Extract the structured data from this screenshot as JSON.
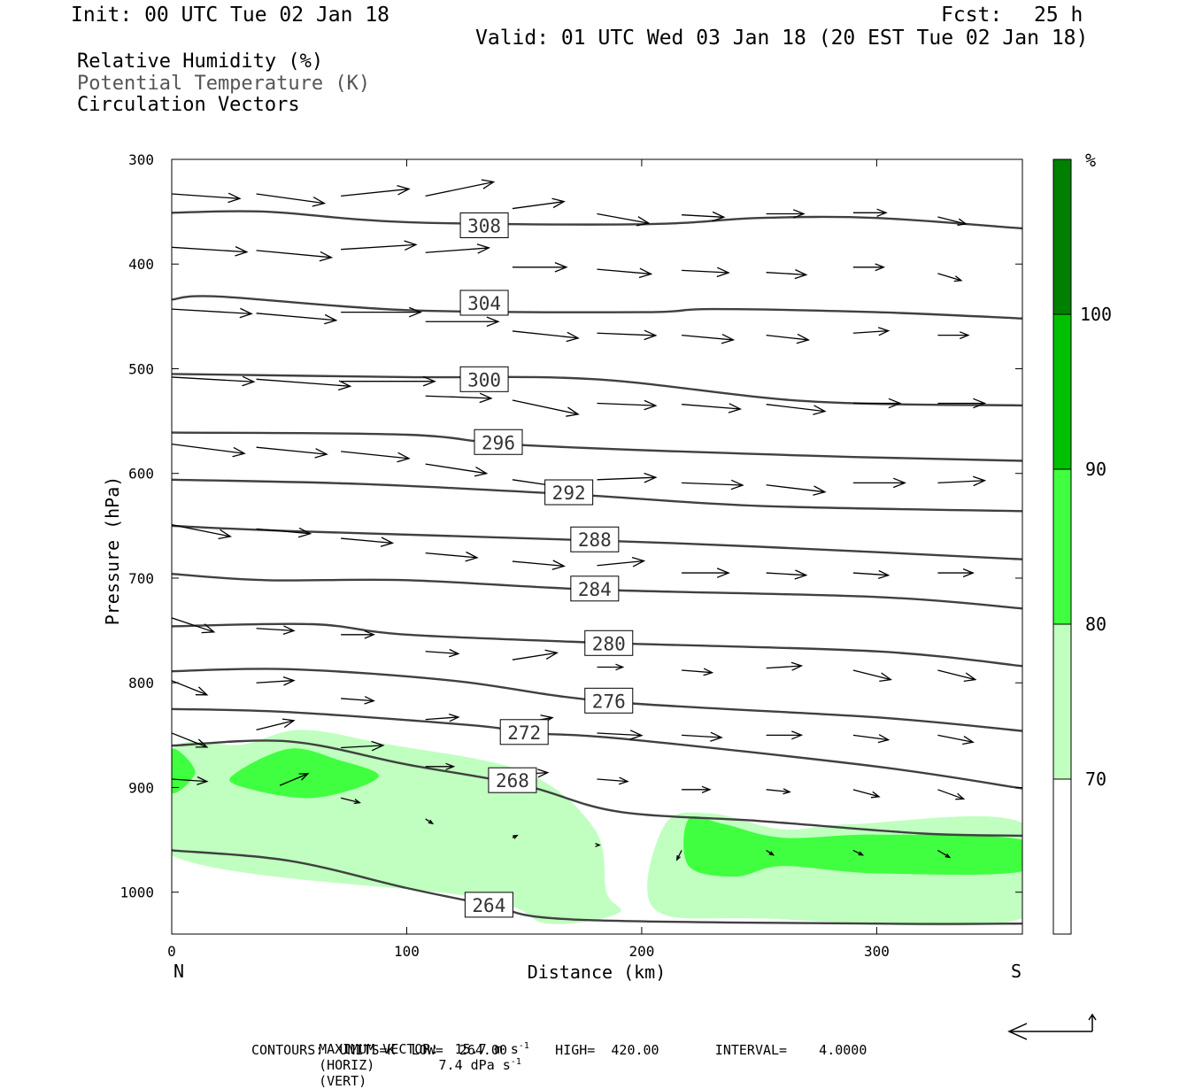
{
  "header": {
    "init": "Init: 00 UTC Tue 02 Jan 18",
    "fcst_label": "Fcst:",
    "fcst_value": "25 h",
    "valid": "Valid: 01 UTC Wed 03 Jan 18 (20 EST Tue 02 Jan 18)"
  },
  "legend": {
    "line1": "Relative Humidity (%)",
    "line2": "Potential Temperature (K)",
    "line3": "Circulation Vectors"
  },
  "footer": {
    "max_vector_prefix": "MAXIMUM VECTOR:  15.7 m s",
    "max_vector_mid": "(HORIZ)        7.4 dPa s",
    "max_vector_end": "(VERT)",
    "superscript": "-1",
    "contours": "CONTOURS:  UNITS=K  LOW=  264.00      HIGH=  420.00       INTERVAL=    4.0000"
  },
  "colors": {
    "rh_70_80": "#c0ffc0",
    "rh_80_90": "#40ff40",
    "rh_90_100": "#00c000",
    "rh_100": "#008000",
    "theta_line": "#404040",
    "vector": "#000000"
  },
  "chart_data": {
    "type": "cross-section",
    "xlabel": "Distance (km)",
    "ylabel": "Pressure (hPa)",
    "x_left_label": "N",
    "x_right_label": "S",
    "xlim": [
      0,
      362
    ],
    "ylim": [
      1040,
      300
    ],
    "y_scale": "linear",
    "x_ticks": [
      0,
      100,
      200,
      300
    ],
    "y_ticks": [
      300,
      400,
      500,
      600,
      700,
      800,
      900,
      1000
    ],
    "colorbar": {
      "unit": "%",
      "levels": [
        70,
        80,
        90,
        100
      ],
      "colors": [
        "#ffffff",
        "#c0ffc0",
        "#40ff40",
        "#00c000",
        "#008000"
      ]
    },
    "theta_contours": [
      {
        "label": "308",
        "label_x": 133,
        "label_p": 363,
        "points": [
          [
            0,
            351
          ],
          [
            40,
            350
          ],
          [
            100,
            360
          ],
          [
            200,
            362
          ],
          [
            250,
            356
          ],
          [
            300,
            356
          ],
          [
            362,
            366
          ]
        ]
      },
      {
        "label": "304",
        "label_x": 133,
        "label_p": 437,
        "points": [
          [
            0,
            434
          ],
          [
            20,
            431
          ],
          [
            100,
            444
          ],
          [
            200,
            446
          ],
          [
            230,
            443
          ],
          [
            300,
            446
          ],
          [
            362,
            452
          ]
        ]
      },
      {
        "label": "300",
        "label_x": 133,
        "label_p": 510,
        "points": [
          [
            0,
            505
          ],
          [
            100,
            508
          ],
          [
            180,
            510
          ],
          [
            270,
            531
          ],
          [
            362,
            535
          ]
        ]
      },
      {
        "label": "296",
        "label_x": 139,
        "label_p": 570,
        "points": [
          [
            0,
            561
          ],
          [
            100,
            563
          ],
          [
            150,
            573
          ],
          [
            270,
            583
          ],
          [
            362,
            588
          ]
        ]
      },
      {
        "label": "292",
        "label_x": 169,
        "label_p": 618,
        "points": [
          [
            0,
            606
          ],
          [
            80,
            610
          ],
          [
            170,
            620
          ],
          [
            250,
            631
          ],
          [
            362,
            636
          ]
        ]
      },
      {
        "label": "288",
        "label_x": 180,
        "label_p": 663,
        "points": [
          [
            0,
            650
          ],
          [
            50,
            655
          ],
          [
            180,
            664
          ],
          [
            250,
            670
          ],
          [
            362,
            682
          ]
        ]
      },
      {
        "label": "284",
        "label_x": 180,
        "label_p": 710,
        "points": [
          [
            0,
            696
          ],
          [
            40,
            702
          ],
          [
            100,
            702
          ],
          [
            180,
            711
          ],
          [
            300,
            718
          ],
          [
            362,
            729
          ]
        ]
      },
      {
        "label": "280",
        "label_x": 186,
        "label_p": 762,
        "points": [
          [
            0,
            746
          ],
          [
            60,
            744
          ],
          [
            100,
            754
          ],
          [
            186,
            762
          ],
          [
            300,
            770
          ],
          [
            362,
            784
          ]
        ]
      },
      {
        "label": "276",
        "label_x": 186,
        "label_p": 817,
        "points": [
          [
            0,
            789
          ],
          [
            50,
            787
          ],
          [
            120,
            798
          ],
          [
            186,
            818
          ],
          [
            300,
            833
          ],
          [
            362,
            846
          ]
        ]
      },
      {
        "label": "272",
        "label_x": 150,
        "label_p": 847,
        "points": [
          [
            0,
            825
          ],
          [
            50,
            828
          ],
          [
            130,
            841
          ],
          [
            150,
            848
          ],
          [
            190,
            853
          ],
          [
            300,
            880
          ],
          [
            362,
            901
          ]
        ]
      },
      {
        "label": "268",
        "label_x": 145,
        "label_p": 893,
        "points": [
          [
            0,
            860
          ],
          [
            50,
            856
          ],
          [
            100,
            878
          ],
          [
            150,
            898
          ],
          [
            190,
            923
          ],
          [
            250,
            932
          ],
          [
            320,
            944
          ],
          [
            362,
            946
          ]
        ]
      },
      {
        "label": "264",
        "label_x": 135,
        "label_p": 1012,
        "points": [
          [
            0,
            960
          ],
          [
            50,
            970
          ],
          [
            100,
            996
          ],
          [
            135,
            1012
          ],
          [
            170,
            1026
          ],
          [
            300,
            1030
          ],
          [
            362,
            1030
          ]
        ]
      }
    ],
    "rh_regions": [
      {
        "level": "70-80",
        "points": [
          [
            0,
            865
          ],
          [
            30,
            859
          ],
          [
            55,
            845
          ],
          [
            90,
            858
          ],
          [
            150,
            885
          ],
          [
            180,
            940
          ],
          [
            185,
            1000
          ],
          [
            190,
            1020
          ],
          [
            160,
            1030
          ],
          [
            130,
            1005
          ],
          [
            0,
            965
          ]
        ]
      },
      {
        "level": "70-80",
        "points": [
          [
            210,
            935
          ],
          [
            230,
            925
          ],
          [
            260,
            940
          ],
          [
            290,
            935
          ],
          [
            362,
            934
          ],
          [
            362,
            1025
          ],
          [
            250,
            1025
          ],
          [
            205,
            1015
          ]
        ]
      },
      {
        "level": "80-90",
        "points": [
          [
            0,
            863
          ],
          [
            10,
            885
          ],
          [
            0,
            905
          ]
        ]
      },
      {
        "level": "80-90",
        "points": [
          [
            28,
            885
          ],
          [
            50,
            863
          ],
          [
            70,
            873
          ],
          [
            88,
            890
          ],
          [
            60,
            910
          ],
          [
            28,
            898
          ]
        ]
      },
      {
        "level": "80-90",
        "points": [
          [
            220,
            930
          ],
          [
            235,
            935
          ],
          [
            260,
            948
          ],
          [
            300,
            945
          ],
          [
            362,
            950
          ],
          [
            362,
            980
          ],
          [
            300,
            982
          ],
          [
            260,
            975
          ],
          [
            240,
            985
          ],
          [
            220,
            975
          ]
        ]
      }
    ],
    "vectors": [
      {
        "x": 0,
        "p": 333,
        "u": 29,
        "v": -2
      },
      {
        "x": 36,
        "p": 333,
        "u": 29,
        "v": -4
      },
      {
        "x": 72,
        "p": 335,
        "u": 29,
        "v": 3
      },
      {
        "x": 108,
        "p": 335,
        "u": 29,
        "v": 6
      },
      {
        "x": 145,
        "p": 347,
        "u": 22,
        "v": 3
      },
      {
        "x": 181,
        "p": 352,
        "u": 22,
        "v": -4
      },
      {
        "x": 217,
        "p": 353,
        "u": 18,
        "v": -1
      },
      {
        "x": 253,
        "p": 352,
        "u": 16,
        "v": 0
      },
      {
        "x": 290,
        "p": 351,
        "u": 14,
        "v": 0
      },
      {
        "x": 326,
        "p": 355,
        "u": 12,
        "v": -3
      },
      {
        "x": 0,
        "p": 384,
        "u": 32,
        "v": -2
      },
      {
        "x": 36,
        "p": 387,
        "u": 32,
        "v": -3
      },
      {
        "x": 72,
        "p": 386,
        "u": 32,
        "v": 2
      },
      {
        "x": 108,
        "p": 389,
        "u": 27,
        "v": 2
      },
      {
        "x": 145,
        "p": 403,
        "u": 23,
        "v": 0
      },
      {
        "x": 181,
        "p": 405,
        "u": 23,
        "v": -2
      },
      {
        "x": 217,
        "p": 406,
        "u": 20,
        "v": -1
      },
      {
        "x": 253,
        "p": 408,
        "u": 17,
        "v": -1
      },
      {
        "x": 290,
        "p": 403,
        "u": 13,
        "v": 0
      },
      {
        "x": 326,
        "p": 409,
        "u": 10,
        "v": -3
      },
      {
        "x": 0,
        "p": 443,
        "u": 34,
        "v": -2
      },
      {
        "x": 36,
        "p": 447,
        "u": 34,
        "v": -3
      },
      {
        "x": 72,
        "p": 446,
        "u": 34,
        "v": 0
      },
      {
        "x": 108,
        "p": 455,
        "u": 31,
        "v": 0
      },
      {
        "x": 145,
        "p": 464,
        "u": 28,
        "v": -3
      },
      {
        "x": 181,
        "p": 466,
        "u": 25,
        "v": -1
      },
      {
        "x": 217,
        "p": 468,
        "u": 22,
        "v": -2
      },
      {
        "x": 253,
        "p": 468,
        "u": 18,
        "v": -2
      },
      {
        "x": 290,
        "p": 466,
        "u": 15,
        "v": 1
      },
      {
        "x": 326,
        "p": 468,
        "u": 13,
        "v": 0
      },
      {
        "x": 0,
        "p": 508,
        "u": 35,
        "v": -2
      },
      {
        "x": 36,
        "p": 510,
        "u": 40,
        "v": -3
      },
      {
        "x": 72,
        "p": 512,
        "u": 40,
        "v": 0
      },
      {
        "x": 108,
        "p": 526,
        "u": 28,
        "v": -1
      },
      {
        "x": 145,
        "p": 530,
        "u": 28,
        "v": -6
      },
      {
        "x": 181,
        "p": 533,
        "u": 25,
        "v": -1
      },
      {
        "x": 217,
        "p": 534,
        "u": 25,
        "v": -2
      },
      {
        "x": 253,
        "p": 534,
        "u": 25,
        "v": -3
      },
      {
        "x": 290,
        "p": 533,
        "u": 20,
        "v": 0
      },
      {
        "x": 326,
        "p": 533,
        "u": 20,
        "v": 0
      },
      {
        "x": 0,
        "p": 572,
        "u": 31,
        "v": -4
      },
      {
        "x": 36,
        "p": 575,
        "u": 30,
        "v": -3
      },
      {
        "x": 72,
        "p": 579,
        "u": 29,
        "v": -3
      },
      {
        "x": 108,
        "p": 591,
        "u": 26,
        "v": -4
      },
      {
        "x": 145,
        "p": 606,
        "u": 27,
        "v": -4
      },
      {
        "x": 181,
        "p": 606,
        "u": 25,
        "v": 1
      },
      {
        "x": 217,
        "p": 609,
        "u": 26,
        "v": -1
      },
      {
        "x": 253,
        "p": 611,
        "u": 25,
        "v": -3
      },
      {
        "x": 290,
        "p": 609,
        "u": 22,
        "v": 0
      },
      {
        "x": 326,
        "p": 609,
        "u": 20,
        "v": 1
      },
      {
        "x": 0,
        "p": 649,
        "u": 25,
        "v": -5
      },
      {
        "x": 36,
        "p": 653,
        "u": 23,
        "v": -2
      },
      {
        "x": 72,
        "p": 662,
        "u": 22,
        "v": -2
      },
      {
        "x": 108,
        "p": 676,
        "u": 22,
        "v": -2
      },
      {
        "x": 145,
        "p": 684,
        "u": 22,
        "v": -2
      },
      {
        "x": 181,
        "p": 688,
        "u": 20,
        "v": 2
      },
      {
        "x": 217,
        "p": 695,
        "u": 20,
        "v": 0
      },
      {
        "x": 253,
        "p": 695,
        "u": 17,
        "v": -1
      },
      {
        "x": 290,
        "p": 695,
        "u": 15,
        "v": -1
      },
      {
        "x": 326,
        "p": 695,
        "u": 15,
        "v": 0
      },
      {
        "x": 0,
        "p": 738,
        "u": 18,
        "v": -6
      },
      {
        "x": 36,
        "p": 748,
        "u": 16,
        "v": -1
      },
      {
        "x": 72,
        "p": 754,
        "u": 14,
        "v": 0
      },
      {
        "x": 108,
        "p": 770,
        "u": 14,
        "v": -1
      },
      {
        "x": 145,
        "p": 778,
        "u": 19,
        "v": 3
      },
      {
        "x": 181,
        "p": 785,
        "u": 11,
        "v": 0
      },
      {
        "x": 217,
        "p": 788,
        "u": 13,
        "v": -1
      },
      {
        "x": 253,
        "p": 786,
        "u": 15,
        "v": 1
      },
      {
        "x": 290,
        "p": 788,
        "u": 16,
        "v": -4
      },
      {
        "x": 326,
        "p": 788,
        "u": 16,
        "v": -4
      },
      {
        "x": 0,
        "p": 798,
        "u": 15,
        "v": -6
      },
      {
        "x": 36,
        "p": 800,
        "u": 16,
        "v": 1
      },
      {
        "x": 72,
        "p": 815,
        "u": 14,
        "v": -1
      },
      {
        "x": 108,
        "p": 835,
        "u": 14,
        "v": 1
      },
      {
        "x": 145,
        "p": 840,
        "u": 17,
        "v": 3
      },
      {
        "x": 181,
        "p": 848,
        "u": 19,
        "v": -1
      },
      {
        "x": 217,
        "p": 850,
        "u": 17,
        "v": -1
      },
      {
        "x": 253,
        "p": 850,
        "u": 15,
        "v": 0
      },
      {
        "x": 290,
        "p": 850,
        "u": 15,
        "v": -2
      },
      {
        "x": 326,
        "p": 850,
        "u": 15,
        "v": -3
      },
      {
        "x": 0,
        "p": 848,
        "u": 15,
        "v": -6
      },
      {
        "x": 36,
        "p": 845,
        "u": 16,
        "v": 4
      },
      {
        "x": 72,
        "p": 862,
        "u": 18,
        "v": 1
      },
      {
        "x": 108,
        "p": 880,
        "u": 12,
        "v": 0
      },
      {
        "x": 145,
        "p": 888,
        "u": 15,
        "v": 1
      },
      {
        "x": 181,
        "p": 892,
        "u": 13,
        "v": -1
      },
      {
        "x": 217,
        "p": 902,
        "u": 12,
        "v": 0
      },
      {
        "x": 253,
        "p": 902,
        "u": 10,
        "v": -1
      },
      {
        "x": 290,
        "p": 902,
        "u": 11,
        "v": -3
      },
      {
        "x": 326,
        "p": 902,
        "u": 11,
        "v": -4
      },
      {
        "x": 0,
        "p": 892,
        "u": 15,
        "v": -1
      },
      {
        "x": 46,
        "p": 898,
        "u": 12,
        "v": 5
      },
      {
        "x": 72,
        "p": 910,
        "u": 8,
        "v": -2
      },
      {
        "x": 108,
        "p": 930,
        "u": 3,
        "v": -2
      },
      {
        "x": 145,
        "p": 948,
        "u": 2,
        "v": 1
      },
      {
        "x": 181,
        "p": 955,
        "u": 1,
        "v": 0
      },
      {
        "x": 217,
        "p": 960,
        "u": -2,
        "v": -4
      },
      {
        "x": 253,
        "p": 960,
        "u": 3,
        "v": -2
      },
      {
        "x": 290,
        "p": 960,
        "u": 4,
        "v": -2
      },
      {
        "x": 326,
        "p": 960,
        "u": 5,
        "v": -3
      }
    ]
  }
}
